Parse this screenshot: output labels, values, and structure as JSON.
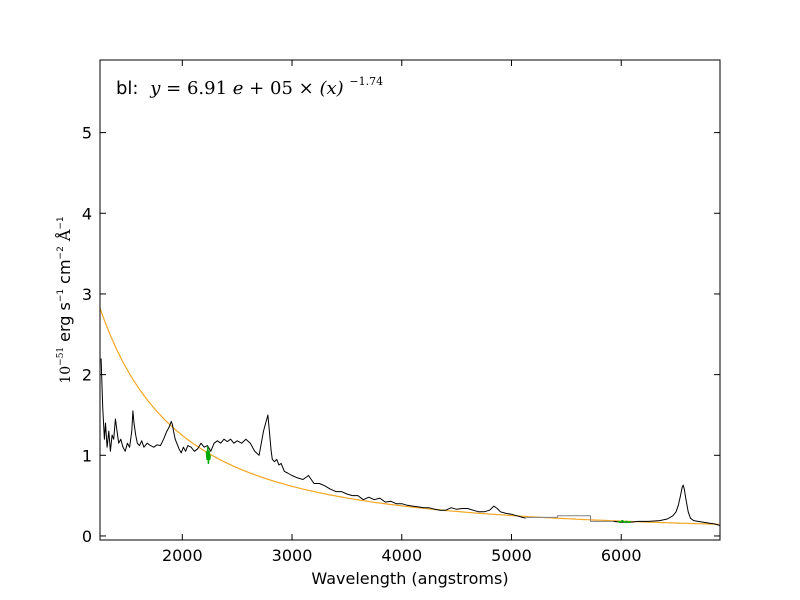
{
  "chart_data": {
    "type": "line",
    "xlabel": "Wavelength (angstroms)",
    "ylabel": {
      "prefix": "10",
      "prefix_sup": "−51",
      "text": "erg s",
      "s_sup": "−1",
      "cm_text": "cm",
      "cm_sup": "−2",
      "angstrom": "Å",
      "angstrom_sup": "−1"
    },
    "annotation": {
      "label": "bl:",
      "lhs": "y",
      "eq": "=",
      "coef": "6.91",
      "e": "e",
      "plus": "+",
      "exp10": "05",
      "times": "×",
      "arg": "(x)",
      "power": "−1.74"
    },
    "xlim": [
      1250,
      6900
    ],
    "ylim": [
      -0.05,
      5.9
    ],
    "xticks": [
      2000,
      3000,
      4000,
      5000,
      6000
    ],
    "yticks": [
      0,
      1,
      2,
      3,
      4,
      5
    ],
    "fit": {
      "a": 691000,
      "b": -1.74,
      "color": "#f5a623"
    },
    "spectrum_color": "#000000",
    "mask_color": "#00aa00",
    "gap_color": "#808080",
    "spectrum": {
      "x": [
        1260,
        1275,
        1290,
        1300,
        1315,
        1330,
        1345,
        1360,
        1375,
        1390,
        1405,
        1420,
        1440,
        1460,
        1480,
        1500,
        1520,
        1540,
        1550,
        1560,
        1575,
        1590,
        1610,
        1630,
        1650,
        1680,
        1710,
        1740,
        1770,
        1800,
        1830,
        1860,
        1880,
        1900,
        1910,
        1920,
        1935,
        1950,
        1970,
        1990,
        2010,
        2030,
        2050,
        2080,
        2110,
        2140,
        2170,
        2200,
        2230,
        2260,
        2290,
        2320,
        2350,
        2380,
        2410,
        2440,
        2470,
        2500,
        2540,
        2580,
        2620,
        2660,
        2700,
        2720,
        2740,
        2760,
        2780,
        2790,
        2800,
        2810,
        2820,
        2840,
        2860,
        2880,
        2900,
        2930,
        2960,
        3000,
        3050,
        3100,
        3150,
        3200,
        3250,
        3300,
        3350,
        3400,
        3450,
        3500,
        3550,
        3600,
        3650,
        3700,
        3750,
        3800,
        3850,
        3900,
        3950,
        4000,
        4050,
        4100,
        4150,
        4200,
        4250,
        4300,
        4350,
        4400,
        4450,
        4500,
        4550,
        4600,
        4650,
        4700,
        4750,
        4800,
        4840,
        4870,
        4900,
        4950,
        5000,
        5050,
        5100,
        5130
      ],
      "y": [
        2.2,
        1.6,
        1.2,
        1.4,
        1.1,
        1.3,
        1.05,
        1.25,
        1.2,
        1.45,
        1.3,
        1.15,
        1.2,
        1.1,
        1.05,
        1.15,
        1.1,
        1.3,
        1.55,
        1.4,
        1.25,
        1.15,
        1.12,
        1.18,
        1.1,
        1.15,
        1.12,
        1.1,
        1.13,
        1.12,
        1.2,
        1.3,
        1.35,
        1.42,
        1.38,
        1.3,
        1.2,
        1.15,
        1.08,
        1.03,
        1.1,
        1.05,
        1.12,
        1.1,
        1.05,
        1.08,
        1.15,
        1.1,
        1.12,
        1.05,
        1.15,
        1.18,
        1.15,
        1.2,
        1.17,
        1.2,
        1.15,
        1.18,
        1.15,
        1.2,
        1.15,
        1.05,
        1.0,
        1.15,
        1.3,
        1.4,
        1.5,
        1.35,
        1.2,
        1.05,
        0.95,
        0.92,
        0.95,
        0.88,
        0.9,
        0.8,
        0.78,
        0.75,
        0.72,
        0.7,
        0.75,
        0.65,
        0.65,
        0.62,
        0.58,
        0.55,
        0.55,
        0.52,
        0.5,
        0.5,
        0.45,
        0.48,
        0.45,
        0.47,
        0.42,
        0.43,
        0.4,
        0.4,
        0.38,
        0.37,
        0.36,
        0.35,
        0.35,
        0.33,
        0.32,
        0.32,
        0.35,
        0.33,
        0.34,
        0.34,
        0.32,
        0.3,
        0.3,
        0.32,
        0.37,
        0.34,
        0.3,
        0.28,
        0.27,
        0.25,
        0.23,
        0.22
      ]
    },
    "gap": {
      "x": [
        5130,
        5420,
        5420,
        5720,
        5720,
        5930
      ],
      "y": [
        0.23,
        0.23,
        0.25,
        0.25,
        0.18,
        0.18
      ]
    },
    "spectrum_red": {
      "x": [
        5930,
        6000,
        6080,
        6150,
        6250,
        6350,
        6420,
        6470,
        6500,
        6520,
        6540,
        6555,
        6565,
        6575,
        6590,
        6610,
        6630,
        6660,
        6700,
        6750,
        6800,
        6850,
        6900
      ],
      "y": [
        0.18,
        0.17,
        0.17,
        0.18,
        0.18,
        0.19,
        0.21,
        0.25,
        0.3,
        0.38,
        0.5,
        0.6,
        0.63,
        0.58,
        0.45,
        0.3,
        0.22,
        0.19,
        0.18,
        0.17,
        0.16,
        0.15,
        0.13
      ]
    },
    "masks": [
      {
        "x": [
          2220,
          2225,
          2232,
          2238,
          2245,
          2250,
          2255
        ],
        "y": [
          1.05,
          0.95,
          1.1,
          0.9,
          1.05,
          0.95,
          1.0
        ]
      },
      {
        "x": [
          5970,
          5990,
          6010,
          6030,
          6050,
          6070,
          6090
        ],
        "y": [
          0.18,
          0.17,
          0.19,
          0.17,
          0.18,
          0.17,
          0.18
        ]
      }
    ]
  }
}
